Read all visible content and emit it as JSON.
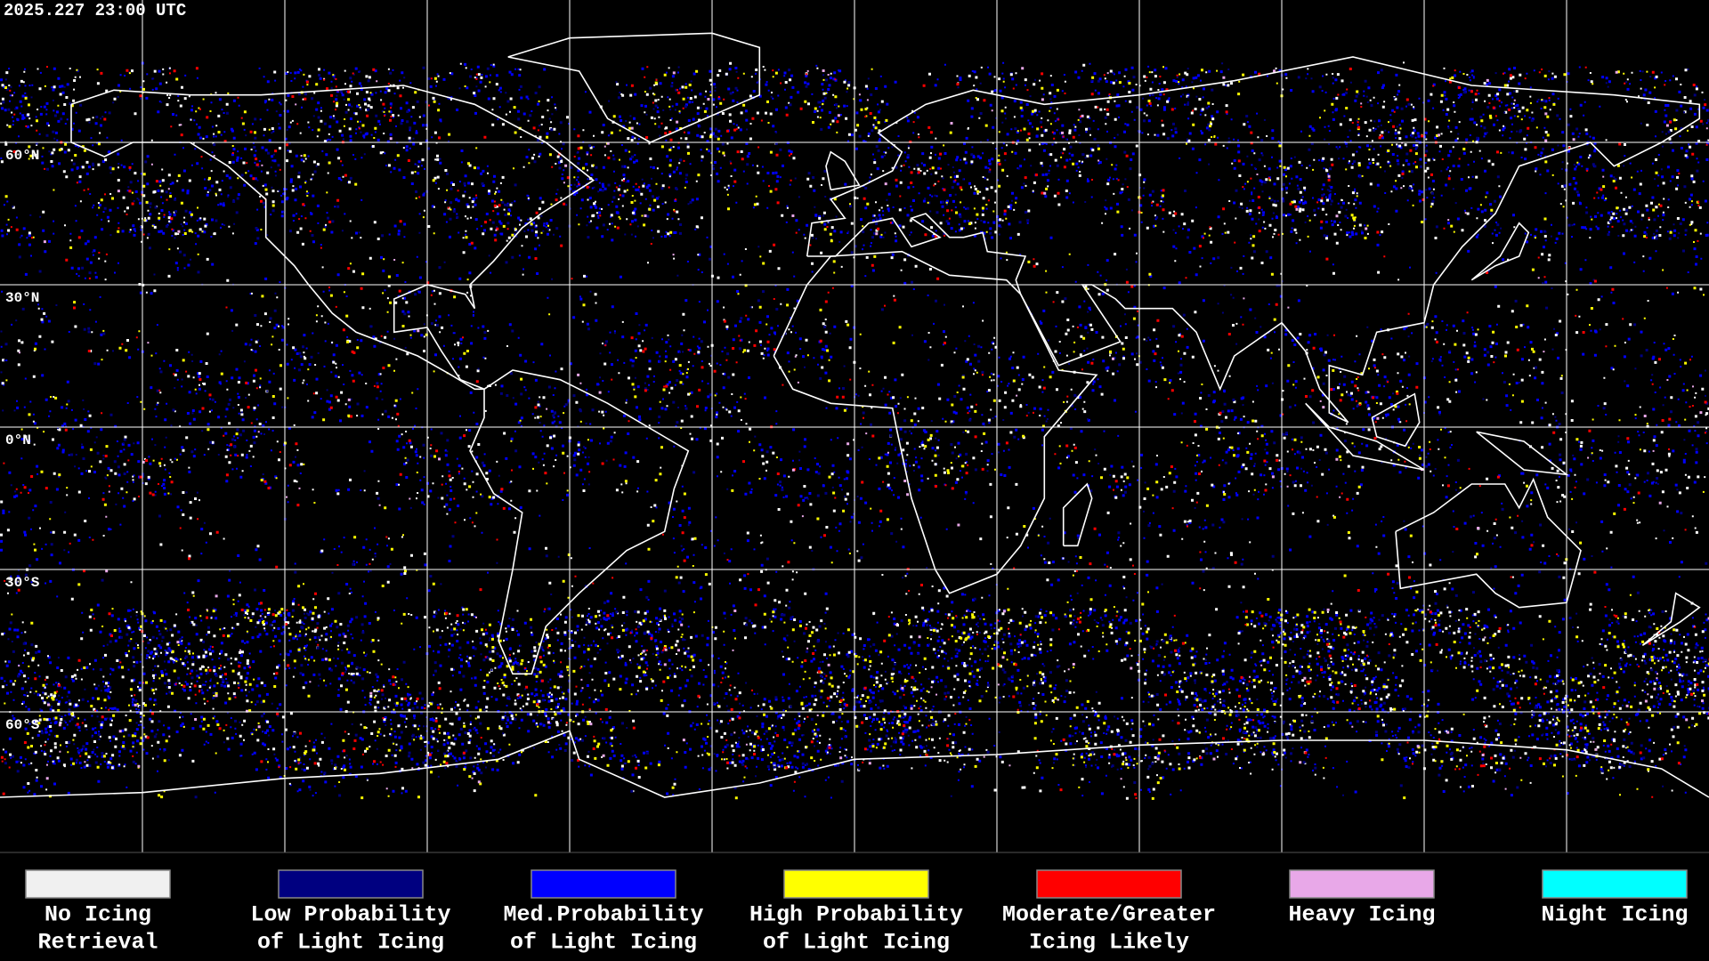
{
  "timestamp": "2025.227 23:00 UTC",
  "latitude_labels": [
    "60°N",
    "30°N",
    "0°N",
    "30°S",
    "60°S"
  ],
  "legend": [
    {
      "label_lines": [
        "No Icing",
        "Retrieval"
      ],
      "color": "#f0f0f0"
    },
    {
      "label_lines": [
        "Low Probability",
        "of Light Icing"
      ],
      "color": "#000080"
    },
    {
      "label_lines": [
        "Med.Probability",
        "of Light Icing"
      ],
      "color": "#0000ff"
    },
    {
      "label_lines": [
        "High Probability",
        "of Light Icing"
      ],
      "color": "#ffff00"
    },
    {
      "label_lines": [
        "Moderate/Greater",
        "Icing Likely"
      ],
      "color": "#ff0000"
    },
    {
      "label_lines": [
        "Heavy Icing"
      ],
      "color": "#e8a8e8"
    },
    {
      "label_lines": [
        "Night Icing"
      ],
      "color": "#00ffff"
    }
  ]
}
